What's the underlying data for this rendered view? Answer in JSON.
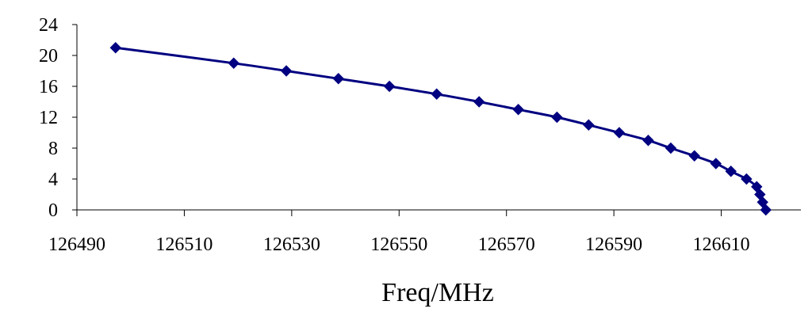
{
  "chart_data": {
    "type": "line",
    "title": "",
    "xlabel": "Freq/MHz",
    "ylabel": "",
    "xlim": [
      126490,
      126630
    ],
    "ylim": [
      0,
      24
    ],
    "x_ticks": [
      126490,
      126510,
      126530,
      126550,
      126570,
      126590,
      126610
    ],
    "x_tick_labels": [
      "126490",
      "126510",
      "126530",
      "126550",
      "126570",
      "126590",
      "126610"
    ],
    "y_ticks": [
      0,
      4,
      8,
      12,
      16,
      20,
      24
    ],
    "y_tick_labels": [
      "0",
      "4",
      "8",
      "12",
      "16",
      "20",
      "24"
    ],
    "grid": false,
    "legend": "none",
    "series": [
      {
        "marker": "diamond",
        "color": "#000080",
        "x": [
          126497.2,
          126519.2,
          126529.0,
          126538.7,
          126548.2,
          126557.0,
          126564.9,
          126572.2,
          126579.4,
          126585.3,
          126591.0,
          126596.4,
          126600.6,
          126605.0,
          126609.0,
          126611.8,
          126614.7,
          126616.6,
          126617.2,
          126617.7,
          126618.3
        ],
        "y": [
          21,
          19,
          18,
          17,
          16,
          15,
          14,
          13,
          12,
          11,
          10,
          9,
          8,
          7,
          6,
          5,
          4,
          3,
          2,
          1,
          0
        ]
      }
    ]
  }
}
